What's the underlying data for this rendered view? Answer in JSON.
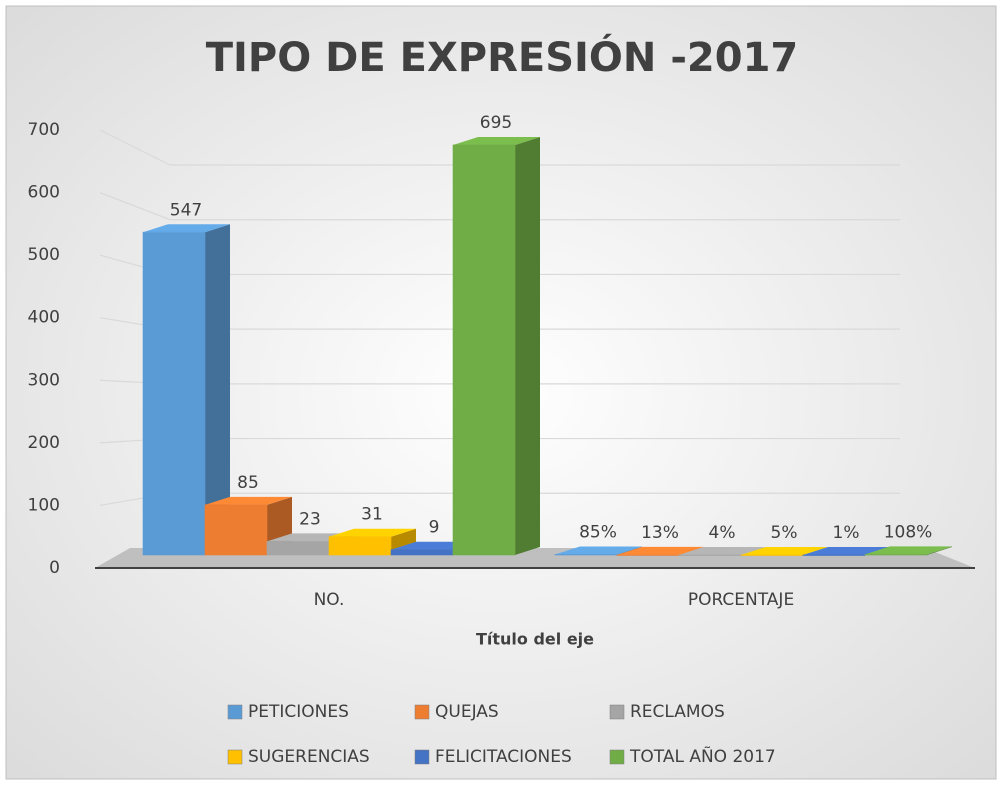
{
  "chart_data": {
    "type": "bar3d",
    "title": "TIPO DE EXPRESIÓN -2017",
    "x_label": "Título del eje",
    "categories": [
      "NO.",
      "PORCENTAJE"
    ],
    "series": [
      {
        "name": "PETICIONES",
        "color": "#5b9bd5",
        "values": [
          547,
          0.85
        ],
        "value_labels": [
          "547",
          "85%"
        ]
      },
      {
        "name": "QUEJAS",
        "color": "#ed7d31",
        "values": [
          85,
          0.13
        ],
        "value_labels": [
          "85",
          "13%"
        ]
      },
      {
        "name": "RECLAMOS",
        "color": "#a5a5a5",
        "values": [
          23,
          0.04
        ],
        "value_labels": [
          "23",
          "4%"
        ]
      },
      {
        "name": "SUGERENCIAS",
        "color": "#ffc000",
        "values": [
          31,
          0.05
        ],
        "value_labels": [
          "31",
          "5%"
        ]
      },
      {
        "name": "FELICITACIONES",
        "color": "#4472c4",
        "values": [
          9,
          0.01
        ],
        "value_labels": [
          "9",
          "1%"
        ]
      },
      {
        "name": "TOTAL AÑO 2017",
        "color": "#70ad47",
        "values": [
          695,
          1.08
        ],
        "value_labels": [
          "695",
          "108%"
        ]
      }
    ],
    "ylim": [
      0,
      700
    ],
    "yticks": [
      0,
      100,
      200,
      300,
      400,
      500,
      600,
      700
    ],
    "grid": true
  }
}
